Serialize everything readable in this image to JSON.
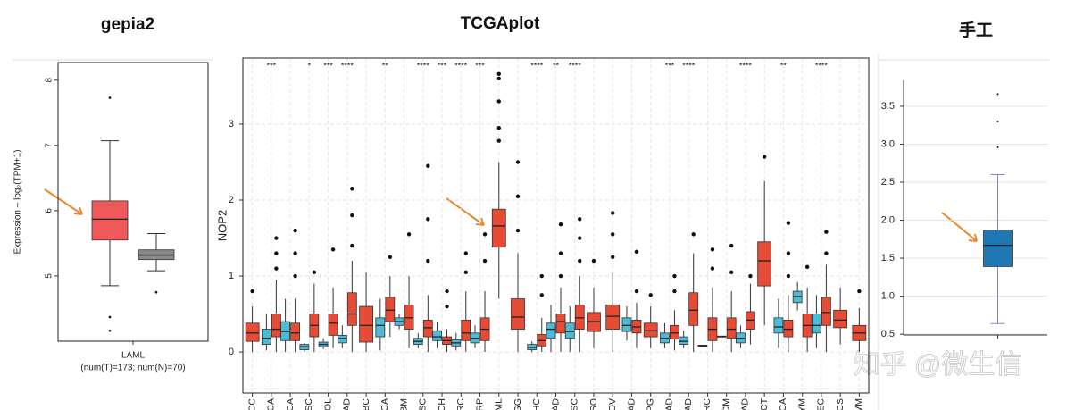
{
  "watermark": "知乎 @微生信",
  "chart_data": [
    {
      "type": "box",
      "title": "gepia2",
      "ylabel": "Expression – log₂(TPM+1)",
      "categories": [
        "LAML"
      ],
      "xlabel": "(num(T)=173; num(N)=70)",
      "ylim": [
        4,
        8.27
      ],
      "yticks": [
        5,
        6,
        7,
        8
      ],
      "grid": false,
      "series": [
        {
          "color": "#f0595a",
          "boxes": [
            {
              "low": 4.85,
              "q1": 5.55,
              "median": 5.87,
              "q3": 6.15,
              "high": 7.07,
              "outliers": [
                7.73,
                4.37,
                4.16
              ]
            }
          ]
        },
        {
          "color": "#8a8a8a",
          "boxes": [
            {
              "low": 5.08,
              "q1": 5.25,
              "median": 5.32,
              "q3": 5.4,
              "high": 5.65,
              "outliers": [
                4.75
              ]
            }
          ]
        }
      ]
    },
    {
      "type": "box",
      "title": "TCGAplot",
      "ylabel": "NOP2",
      "categories": [
        "ACC",
        "BLCA",
        "BRCA",
        "CESC",
        "CHOL",
        "COAD",
        "DLBC",
        "ESCA",
        "GBM",
        "HNSC",
        "KICH",
        "KIRC",
        "KIRP",
        "LAML",
        "LGG",
        "LIHC",
        "LUAD",
        "LUSC",
        "MESO",
        "OV",
        "PAAD",
        "PCPG",
        "PRAD",
        "READ",
        "SARC",
        "SKCM",
        "STAD",
        "TGCT",
        "THCA",
        "THYM",
        "UCEC",
        "UCS",
        "UVM"
      ],
      "signif": [
        null,
        "***",
        null,
        "*",
        "***",
        "****",
        null,
        "**",
        null,
        "****",
        "***",
        "****",
        "***",
        null,
        null,
        "****",
        "**",
        "****",
        null,
        null,
        null,
        null,
        "***",
        "****",
        null,
        null,
        "****",
        null,
        "**",
        null,
        "****",
        null,
        null
      ],
      "ylim": [
        -0.54,
        3.87
      ],
      "yticks": [
        0,
        1,
        2,
        3
      ],
      "grid": true,
      "series": [
        {
          "color": "#4dbbd5",
          "boxes": [
            null,
            {
              "low": 0.02,
              "q1": 0.1,
              "median": 0.18,
              "q3": 0.3,
              "high": 0.5
            },
            {
              "low": 0,
              "q1": 0.15,
              "median": 0.27,
              "q3": 0.4,
              "high": 0.7
            },
            {
              "low": 0,
              "q1": 0.03,
              "median": 0.07,
              "q3": 0.1,
              "high": 0.12
            },
            {
              "low": 0.04,
              "q1": 0.07,
              "median": 0.1,
              "q3": 0.13,
              "high": 0.18
            },
            {
              "low": 0.05,
              "q1": 0.12,
              "median": 0.18,
              "q3": 0.22,
              "high": 0.35
            },
            null,
            {
              "low": 0.02,
              "q1": 0.2,
              "median": 0.35,
              "q3": 0.45,
              "high": 0.7
            },
            {
              "low": 0.3,
              "q1": 0.35,
              "median": 0.4,
              "q3": 0.45,
              "high": 0.5
            },
            {
              "low": 0.05,
              "q1": 0.1,
              "median": 0.14,
              "q3": 0.18,
              "high": 0.25
            },
            {
              "low": 0.05,
              "q1": 0.15,
              "median": 0.2,
              "q3": 0.28,
              "high": 0.4
            },
            {
              "low": 0.02,
              "q1": 0.08,
              "median": 0.12,
              "q3": 0.16,
              "high": 0.25
            },
            {
              "low": 0.05,
              "q1": 0.12,
              "median": 0.18,
              "q3": 0.25,
              "high": 0.35
            },
            null,
            null,
            {
              "low": 0,
              "q1": 0.03,
              "median": 0.06,
              "q3": 0.1,
              "high": 0.14
            },
            {
              "low": 0,
              "q1": 0.18,
              "median": 0.3,
              "q3": 0.38,
              "high": 0.62
            },
            {
              "low": 0,
              "q1": 0.18,
              "median": 0.27,
              "q3": 0.38,
              "high": 0.6
            },
            null,
            null,
            {
              "low": 0.15,
              "q1": 0.27,
              "median": 0.35,
              "q3": 0.45,
              "high": 0.6
            },
            null,
            {
              "low": 0.05,
              "q1": 0.12,
              "median": 0.18,
              "q3": 0.25,
              "high": 0.38
            },
            {
              "low": 0.05,
              "q1": 0.1,
              "median": 0.14,
              "q3": 0.2,
              "high": 0.28
            },
            {
              "low": 0.08,
              "q1": 0.08,
              "median": 0.08,
              "q3": 0.09,
              "high": 0.09
            },
            {
              "low": 0.2,
              "q1": 0.2,
              "median": 0.2,
              "q3": 0.21,
              "high": 0.21
            },
            {
              "low": 0.05,
              "q1": 0.12,
              "median": 0.18,
              "q3": 0.25,
              "high": 0.35
            },
            null,
            {
              "low": 0.05,
              "q1": 0.25,
              "median": 0.33,
              "q3": 0.45,
              "high": 0.7
            },
            {
              "low": 0.55,
              "q1": 0.65,
              "median": 0.73,
              "q3": 0.8,
              "high": 0.92
            },
            {
              "low": 0.05,
              "q1": 0.25,
              "median": 0.35,
              "q3": 0.5,
              "high": 0.75
            },
            null,
            null
          ]
        },
        {
          "color": "#e64b35",
          "boxes": [
            {
              "low": 0,
              "q1": 0.14,
              "median": 0.25,
              "q3": 0.38,
              "high": 0.6,
              "outliers": [
                0.8
              ]
            },
            {
              "low": 0,
              "q1": 0.2,
              "median": 0.3,
              "q3": 0.5,
              "high": 0.95,
              "outliers": [
                1.1,
                1.3,
                1.5
              ]
            },
            {
              "low": 0,
              "q1": 0.15,
              "median": 0.25,
              "q3": 0.38,
              "high": 0.7,
              "outliers": [
                1.0,
                1.3,
                1.6
              ]
            },
            {
              "low": 0,
              "q1": 0.2,
              "median": 0.35,
              "q3": 0.5,
              "high": 0.9,
              "outliers": [
                1.05
              ]
            },
            {
              "low": 0.05,
              "q1": 0.22,
              "median": 0.38,
              "q3": 0.5,
              "high": 0.85,
              "outliers": [
                1.35
              ]
            },
            {
              "low": 0,
              "q1": 0.35,
              "median": 0.5,
              "q3": 0.78,
              "high": 1.2,
              "outliers": [
                1.4,
                1.8,
                2.15
              ]
            },
            {
              "low": 0,
              "q1": 0.13,
              "median": 0.35,
              "q3": 0.6,
              "high": 1.05
            },
            {
              "low": 0.2,
              "q1": 0.4,
              "median": 0.55,
              "q3": 0.72,
              "high": 1.0,
              "outliers": [
                1.25
              ]
            },
            {
              "low": 0.05,
              "q1": 0.3,
              "median": 0.45,
              "q3": 0.62,
              "high": 1.0,
              "outliers": [
                1.55
              ]
            },
            {
              "low": 0,
              "q1": 0.2,
              "median": 0.32,
              "q3": 0.42,
              "high": 0.75,
              "outliers": [
                1.2,
                1.75,
                2.45
              ]
            },
            {
              "low": 0,
              "q1": 0.1,
              "median": 0.15,
              "q3": 0.2,
              "high": 0.3,
              "outliers": [
                0.6,
                0.8
              ]
            },
            {
              "low": 0,
              "q1": 0.15,
              "median": 0.25,
              "q3": 0.42,
              "high": 0.8,
              "outliers": [
                1.05,
                1.3
              ]
            },
            {
              "low": 0,
              "q1": 0.15,
              "median": 0.3,
              "q3": 0.45,
              "high": 0.8,
              "outliers": [
                1.2,
                1.55
              ]
            },
            {
              "low": 0.7,
              "q1": 1.38,
              "median": 1.66,
              "q3": 1.88,
              "high": 2.5,
              "outliers": [
                2.78,
                2.95,
                3.3,
                3.6,
                3.66
              ]
            },
            {
              "low": 0,
              "q1": 0.3,
              "median": 0.46,
              "q3": 0.7,
              "high": 1.3,
              "outliers": [
                1.6,
                2.05,
                2.5
              ]
            },
            {
              "low": 0,
              "q1": 0.08,
              "median": 0.15,
              "q3": 0.23,
              "high": 0.45,
              "outliers": [
                0.75,
                1.0
              ]
            },
            {
              "low": 0,
              "q1": 0.25,
              "median": 0.4,
              "q3": 0.5,
              "high": 0.85,
              "outliers": [
                1.0,
                1.3,
                1.68
              ]
            },
            {
              "low": 0,
              "q1": 0.3,
              "median": 0.45,
              "q3": 0.62,
              "high": 1.0,
              "outliers": [
                1.2,
                1.5,
                1.75
              ]
            },
            {
              "low": 0.05,
              "q1": 0.27,
              "median": 0.4,
              "q3": 0.52,
              "high": 0.85,
              "outliers": [
                1.2
              ]
            },
            {
              "low": 0,
              "q1": 0.3,
              "median": 0.47,
              "q3": 0.62,
              "high": 1.05,
              "outliers": [
                1.25,
                1.55,
                1.83
              ]
            },
            {
              "low": 0.05,
              "q1": 0.25,
              "median": 0.33,
              "q3": 0.42,
              "high": 0.65,
              "outliers": [
                0.8,
                1.32
              ]
            },
            {
              "low": 0.05,
              "q1": 0.2,
              "median": 0.28,
              "q3": 0.38,
              "high": 0.6,
              "outliers": [
                0.75
              ]
            },
            {
              "low": 0.02,
              "q1": 0.17,
              "median": 0.25,
              "q3": 0.35,
              "high": 0.55,
              "outliers": [
                0.8,
                1.0
              ]
            },
            {
              "low": 0,
              "q1": 0.35,
              "median": 0.55,
              "q3": 0.78,
              "high": 1.3,
              "outliers": [
                1.55
              ]
            },
            {
              "low": 0,
              "q1": 0.15,
              "median": 0.3,
              "q3": 0.45,
              "high": 0.85,
              "outliers": [
                1.1,
                1.35
              ]
            },
            {
              "low": 0,
              "q1": 0.18,
              "median": 0.3,
              "q3": 0.45,
              "high": 0.8,
              "outliers": [
                1.05,
                1.4
              ]
            },
            {
              "low": 0.1,
              "q1": 0.3,
              "median": 0.42,
              "q3": 0.53,
              "high": 0.9,
              "outliers": [
                1.0
              ]
            },
            {
              "low": 0.35,
              "q1": 0.87,
              "median": 1.2,
              "q3": 1.45,
              "high": 2.25,
              "outliers": [
                2.57
              ]
            },
            {
              "low": 0,
              "q1": 0.2,
              "median": 0.3,
              "q3": 0.42,
              "high": 0.75,
              "outliers": [
                1.0,
                1.3,
                1.7
              ]
            },
            {
              "low": 0,
              "q1": 0.2,
              "median": 0.35,
              "q3": 0.5,
              "high": 0.85,
              "outliers": [
                1.12
              ]
            },
            {
              "low": 0,
              "q1": 0.35,
              "median": 0.52,
              "q3": 0.72,
              "high": 1.15,
              "outliers": [
                1.3,
                1.58
              ]
            },
            {
              "low": 0.1,
              "q1": 0.32,
              "median": 0.42,
              "q3": 0.55,
              "high": 0.85
            },
            {
              "low": 0,
              "q1": 0.15,
              "median": 0.25,
              "q3": 0.35,
              "high": 0.58,
              "outliers": [
                0.8
              ]
            }
          ]
        }
      ]
    },
    {
      "type": "box",
      "title": "手工",
      "categories": [
        null
      ],
      "ylim": [
        0.49,
        3.84
      ],
      "yticks": [
        0.5,
        {
          "value": 1,
          "label": "1.0"
        },
        1.5,
        {
          "value": 2,
          "label": "2.0"
        },
        2.5,
        {
          "value": 3,
          "label": "3.0"
        },
        3.5
      ],
      "grid": true,
      "whisker_color": "#8c7fd9",
      "series": [
        {
          "color": "#1f77b4",
          "boxes": [
            {
              "low": 0.64,
              "q1": 1.39,
              "median": 1.67,
              "q3": 1.87,
              "high": 2.6,
              "outliers": [
                2.96,
                3.3,
                3.66
              ]
            }
          ]
        }
      ]
    }
  ]
}
